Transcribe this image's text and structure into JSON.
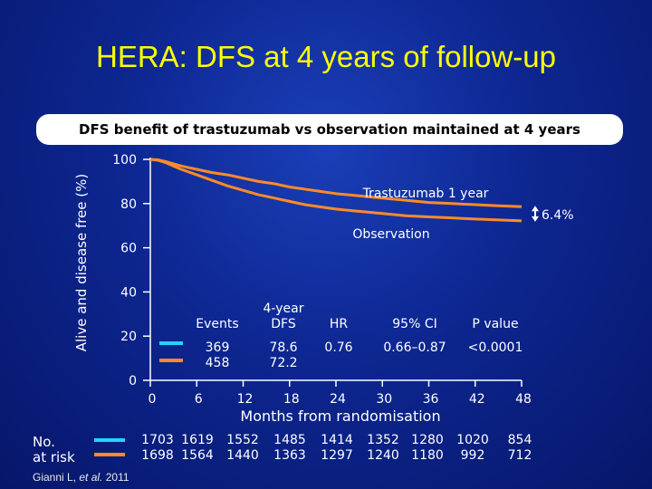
{
  "title": "HERA: DFS at 4 years of follow-up",
  "banner": "DFS benefit of trastuzumab vs observation maintained at 4 years",
  "colors": {
    "trastuzumab": "#22d3ff",
    "observation": "#ff8a2a",
    "title": "#ffff00"
  },
  "chart_data": {
    "type": "line",
    "title": "",
    "xlabel": "Months from randomisation",
    "ylabel": "Alive and disease free (%)",
    "xlim": [
      0,
      48
    ],
    "ylim": [
      0,
      100
    ],
    "xticks": [
      0,
      6,
      12,
      18,
      24,
      30,
      36,
      42,
      48
    ],
    "yticks": [
      0,
      20,
      40,
      60,
      80,
      100
    ],
    "grid": false,
    "series": [
      {
        "name": "Trastuzumab 1 year",
        "x": [
          0,
          1,
          2,
          3,
          4,
          6,
          8,
          10,
          12,
          14,
          16,
          18,
          20,
          22,
          24,
          27,
          30,
          33,
          36,
          39,
          42,
          45,
          48
        ],
        "y": [
          100,
          99.8,
          99,
          98,
          97,
          95.5,
          94,
          93,
          91.5,
          90,
          89,
          87.5,
          86.5,
          85.5,
          84.5,
          83.5,
          82.5,
          81.5,
          80.5,
          80,
          79.5,
          79,
          78.6
        ]
      },
      {
        "name": "Observation",
        "x": [
          0,
          1,
          2,
          3,
          4,
          6,
          8,
          10,
          12,
          14,
          16,
          18,
          20,
          22,
          24,
          27,
          30,
          33,
          36,
          39,
          42,
          45,
          48
        ],
        "y": [
          100,
          99.6,
          98.5,
          97,
          95.5,
          93,
          90.5,
          88,
          86,
          84,
          82.5,
          81,
          79.5,
          78.5,
          77.5,
          76.5,
          75.5,
          74.5,
          74,
          73.5,
          73,
          72.6,
          72.2
        ]
      }
    ],
    "annotations": {
      "difference": "6.4%"
    }
  },
  "summary_table": {
    "headers": {
      "events": "Events",
      "dfs": "4-year",
      "dfs2": "DFS",
      "hr": "HR",
      "ci": "95% CI",
      "p": "P value"
    },
    "rows": [
      {
        "events": "369",
        "dfs": "78.6",
        "hr": "0.76",
        "ci": "0.66–0.87",
        "p": "<0.0001"
      },
      {
        "events": "458",
        "dfs": "72.2",
        "hr": "",
        "ci": "",
        "p": ""
      }
    ]
  },
  "at_risk": {
    "label_line1": "No.",
    "label_line2": "at risk",
    "trastuzumab": [
      "1703",
      "1619",
      "1552",
      "1485",
      "1414",
      "1352",
      "1280",
      "1020",
      "854"
    ],
    "observation": [
      "1698",
      "1564",
      "1440",
      "1363",
      "1297",
      "1240",
      "1180",
      "992",
      "712"
    ]
  },
  "citation": {
    "author": "Gianni L, ",
    "etal": "et al.",
    "year": " 2011"
  }
}
